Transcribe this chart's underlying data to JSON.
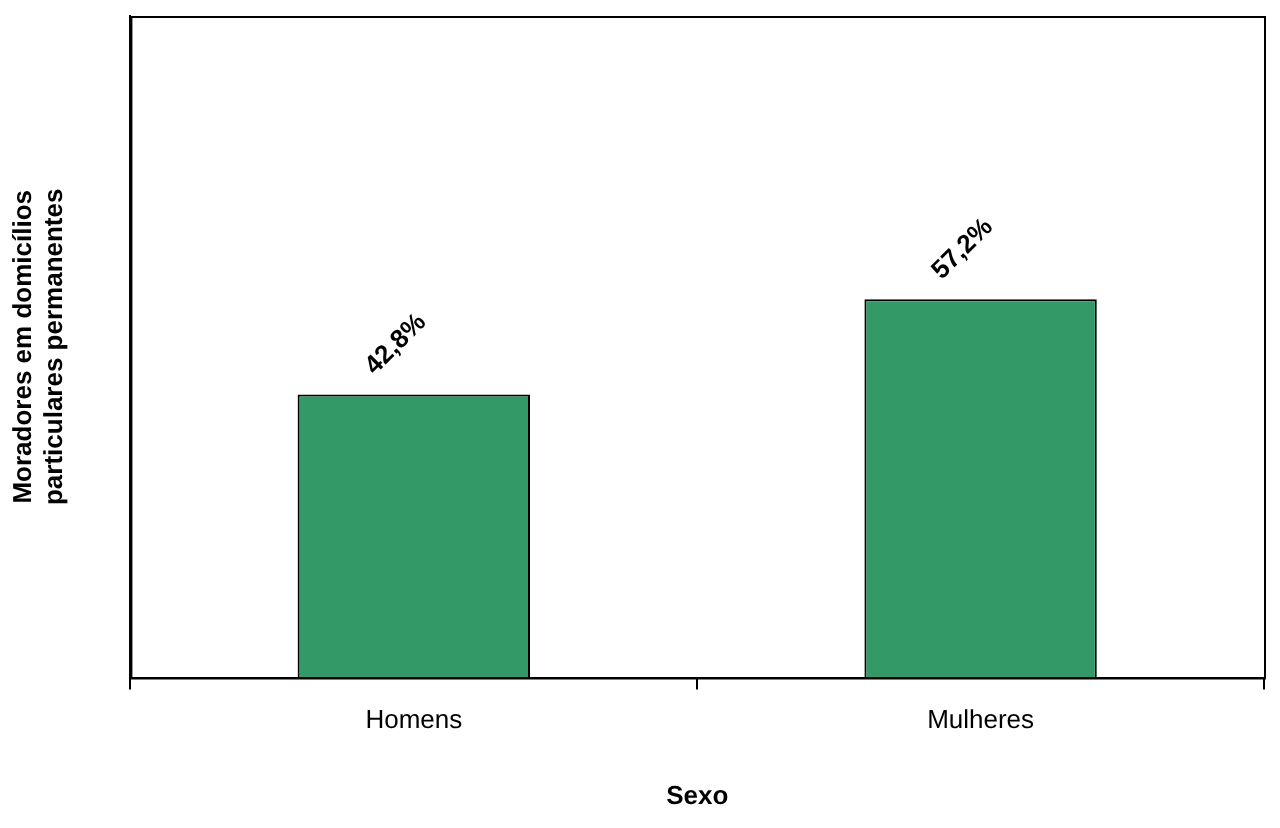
{
  "chart_data": {
    "type": "bar",
    "xlabel": "Sexo",
    "ylabel": "Moradores em domicílios\nparticulares permanentes",
    "categories": [
      "Homens",
      "Mulheres"
    ],
    "values": [
      42.8,
      57.2
    ],
    "value_labels": [
      "42,8%",
      "57,2%"
    ],
    "color": "#339966",
    "ylim": [
      0,
      100
    ],
    "tick_labels": "x",
    "grid": false,
    "legend": false
  }
}
